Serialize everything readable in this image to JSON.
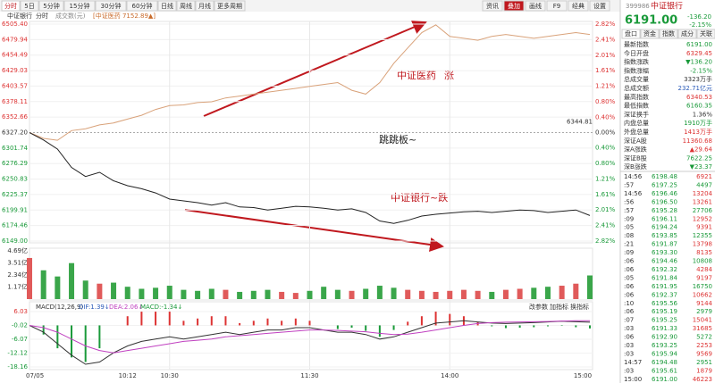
{
  "toolbar": {
    "tabs": [
      "分时",
      "5日",
      "5分钟",
      "15分钟",
      "30分钟",
      "60分钟",
      "日线",
      "周线",
      "月线",
      "更多周期"
    ],
    "tools": [
      "资讯",
      "叠加",
      "画线",
      "F9",
      "经典",
      "设置"
    ]
  },
  "chart": {
    "title": "中证银行",
    "mode": "分时",
    "volume_unit": "成交数(元)",
    "overlay": "[中证医药 7152.89▲]",
    "ylim": [
      6149.0,
      6505.4
    ],
    "y2lim": [
      -2.82,
      2.82
    ],
    "price_ticks": [
      {
        "value": 6505.4,
        "label": "6505.40"
      },
      {
        "value": 6479.94,
        "label": "6479.94"
      },
      {
        "value": 6454.49,
        "label": "6454.49"
      },
      {
        "value": 6429.03,
        "label": "6429.03"
      },
      {
        "value": 6403.57,
        "label": "6403.57"
      },
      {
        "value": 6378.11,
        "label": "6378.11"
      },
      {
        "value": 6352.66,
        "label": "6352.66"
      },
      {
        "value": 6327.2,
        "label": "6327.20"
      },
      {
        "value": 6301.74,
        "label": "6301.74"
      },
      {
        "value": 6276.29,
        "label": "6276.29"
      },
      {
        "value": 6250.83,
        "label": "6250.83"
      },
      {
        "value": 6225.37,
        "label": "6225.37"
      },
      {
        "value": 6199.91,
        "label": "6199.91"
      },
      {
        "value": 6174.46,
        "label": "6174.46"
      },
      {
        "value": 6149.0,
        "label": "6149.00"
      }
    ],
    "pct_ticks": [
      {
        "value": 2.82,
        "label": "2.82%"
      },
      {
        "value": 2.41,
        "label": "2.41%"
      },
      {
        "value": 2.01,
        "label": "2.01%"
      },
      {
        "value": 1.61,
        "label": "1.61%"
      },
      {
        "value": 1.21,
        "label": "1.21%"
      },
      {
        "value": 0.8,
        "label": "0.80%"
      },
      {
        "value": 0.4,
        "label": "0.40%"
      },
      {
        "value": 0,
        "label": "0.00%"
      },
      {
        "value": -0.4,
        "label": "0.40%"
      },
      {
        "value": -0.8,
        "label": "0.80%"
      },
      {
        "value": -1.21,
        "label": "1.21%"
      },
      {
        "value": -1.61,
        "label": "1.61%"
      },
      {
        "value": -2.01,
        "label": "2.01%"
      },
      {
        "value": -2.41,
        "label": "2.41%"
      },
      {
        "value": -2.82,
        "label": "2.82%"
      }
    ],
    "marker": {
      "value": 6344.81,
      "label": "6344.81"
    },
    "x": [
      0,
      6,
      12,
      18,
      24,
      30,
      36,
      42,
      48,
      54,
      60,
      66,
      72,
      78,
      84,
      90,
      96,
      102,
      108,
      114,
      120,
      126,
      132,
      138,
      144,
      150,
      156,
      162,
      168,
      174,
      180,
      186,
      192,
      198,
      204,
      210,
      216,
      222,
      228,
      234,
      240
    ],
    "xlim": [
      0,
      240
    ],
    "bank": [
      6327,
      6315,
      6300,
      6270,
      6255,
      6262,
      6248,
      6240,
      6235,
      6228,
      6218,
      6215,
      6212,
      6208,
      6212,
      6205,
      6204,
      6200,
      6203,
      6206,
      6205,
      6203,
      6200,
      6202,
      6196,
      6182,
      6178,
      6183,
      6190,
      6193,
      6195,
      6197,
      6198,
      6196,
      6198,
      6200,
      6199,
      6196,
      6198,
      6200,
      6191
    ],
    "bank_color": "#222",
    "pharma": [
      0.0,
      -0.15,
      -0.2,
      0.05,
      0.1,
      0.2,
      0.25,
      0.35,
      0.45,
      0.6,
      0.7,
      0.72,
      0.78,
      0.8,
      0.9,
      0.95,
      1.0,
      1.05,
      1.1,
      1.15,
      1.2,
      1.25,
      1.3,
      1.1,
      1.0,
      1.3,
      1.8,
      2.2,
      2.6,
      2.8,
      2.5,
      2.45,
      2.4,
      2.5,
      2.55,
      2.5,
      2.45,
      2.5,
      2.55,
      2.6,
      2.55
    ],
    "pharma_color": "#d9a27a",
    "annotations": [
      "中证医药",
      "涨",
      "跳跳板~",
      "中证银行~跌"
    ]
  },
  "volume": {
    "ylim": [
      0,
      4.69
    ],
    "ticks": [
      {
        "value": 4.69,
        "label": "4.69亿"
      },
      {
        "value": 3.51,
        "label": "3.51亿"
      },
      {
        "value": 2.34,
        "label": "2.34亿"
      },
      {
        "value": 1.17,
        "label": "1.17亿"
      }
    ],
    "values": [
      4.0,
      2.8,
      2.2,
      3.5,
      1.8,
      1.5,
      1.6,
      1.2,
      1.0,
      1.1,
      1.3,
      0.9,
      0.8,
      1.0,
      0.9,
      0.7,
      0.8,
      0.9,
      0.7,
      0.6,
      0.8,
      1.2,
      0.9,
      0.8,
      1.0,
      1.3,
      1.1,
      0.9,
      0.8,
      0.7,
      0.8,
      0.9,
      0.8,
      0.7,
      0.9,
      1.0,
      1.1,
      1.2,
      1.3,
      1.5,
      2.3
    ],
    "up_color": "#e05a5a",
    "down_color": "#3aa64a"
  },
  "macd": {
    "label": "MACD(12,26,9)",
    "dif_label": "DIF:1.39↓",
    "dea_label": "DEA:2.06↓",
    "macd_label": "MACD:-1.34↓",
    "buttons": [
      "改参数",
      "加指标",
      "换指标"
    ],
    "ylim": [
      -18.16,
      6.03
    ],
    "ticks": [
      6.03,
      -0.02,
      -6.07,
      -12.12,
      -18.16
    ],
    "dif": [
      0,
      -3,
      -8,
      -13,
      -17,
      -16,
      -12,
      -9,
      -7,
      -6,
      -5,
      -6,
      -5,
      -4,
      -3,
      -4,
      -3,
      -2,
      -2,
      -1,
      -1,
      -2,
      -3,
      -3,
      -4,
      -6,
      -5,
      -3,
      -1,
      1,
      1.5,
      2,
      1.5,
      1,
      0.8,
      1,
      1.2,
      1.5,
      1.8,
      1.6,
      1.39
    ],
    "dea": [
      0,
      -1,
      -3,
      -6,
      -9,
      -11,
      -12,
      -11,
      -10,
      -9,
      -8,
      -7,
      -6.5,
      -6,
      -5,
      -4.5,
      -4,
      -3.5,
      -3,
      -2.5,
      -2,
      -2,
      -2.2,
      -2.5,
      -2.8,
      -3.5,
      -4,
      -3.8,
      -3,
      -2,
      -1,
      0,
      0.8,
      1.2,
      1.4,
      1.5,
      1.6,
      1.7,
      1.9,
      2.0,
      2.06
    ],
    "hist": [
      0,
      -4,
      -10,
      -14,
      -16,
      -10,
      0,
      4,
      6,
      6,
      6,
      2,
      3,
      4,
      4,
      1,
      2,
      3,
      2,
      3,
      2,
      0,
      -1.6,
      -1,
      -2.4,
      -5,
      -2,
      1.6,
      4,
      6,
      5,
      4,
      1.4,
      -0.4,
      -1.2,
      -1,
      -0.8,
      -0.4,
      -0.2,
      -0.8,
      -1.34
    ],
    "dif_color": "#333",
    "dea_color": "#c040c0"
  },
  "time_axis": {
    "ticks": [
      {
        "value": 0,
        "label": "07/05"
      },
      {
        "value": 42,
        "label": "10:12"
      },
      {
        "value": 60,
        "label": "10:30"
      },
      {
        "value": 120,
        "label": "11:30"
      },
      {
        "value": 180,
        "label": "14:00"
      },
      {
        "value": 240,
        "label": "15:00"
      }
    ]
  },
  "panel": {
    "code": "399986",
    "name": "中证银行",
    "price": "6191.00",
    "change": "-136.20",
    "pct": "-2.15%",
    "tabs": [
      "盘口",
      "资金",
      "指数",
      "成分",
      "关联"
    ],
    "rows": [
      {
        "label": "最新指数",
        "value": "6191.00",
        "color": "#1a9a3a"
      },
      {
        "label": "今日开盘",
        "value": "6329.45",
        "color": "#d33"
      },
      {
        "label": "指数涨跌",
        "value": "▼136.20",
        "color": "#1a9a3a"
      },
      {
        "label": "指数涨幅",
        "value": "-2.15%",
        "color": "#1a9a3a"
      },
      {
        "label": "总成交量",
        "value": "3323万手",
        "color": "#333"
      },
      {
        "label": "总成交额",
        "value": "232.71亿元",
        "color": "#2a5ab8"
      },
      {
        "label": "最高指数",
        "value": "6340.53",
        "color": "#d33"
      },
      {
        "label": "最低指数",
        "value": "6160.35",
        "color": "#1a9a3a"
      },
      {
        "label": "深证换手",
        "value": "1.36%",
        "color": "#333"
      },
      {
        "label": "内盘总量",
        "value": "1910万手",
        "color": "#1a9a3a"
      },
      {
        "label": "外盘总量",
        "value": "1413万手",
        "color": "#d33"
      },
      {
        "label": "深证A股",
        "value": "11360.68",
        "color": "#d33"
      },
      {
        "label": "深A涨跌",
        "value": "▲29.64",
        "color": "#d33"
      },
      {
        "label": "深证B股",
        "value": "7622.25",
        "color": "#1a9a3a"
      },
      {
        "label": "深B涨跌",
        "value": "▼23.37",
        "color": "#1a9a3a"
      }
    ],
    "trades": [
      [
        "14:56",
        "6198.48",
        "6921"
      ],
      [
        ":57",
        "6197.25",
        "4497"
      ],
      [
        "14:56",
        "6196.46",
        "13204"
      ],
      [
        ":56",
        "6196.50",
        "13261"
      ],
      [
        ":57",
        "6195.28",
        "27706"
      ],
      [
        ":09",
        "6196.11",
        "12952"
      ],
      [
        ":05",
        "6194.24",
        "9391"
      ],
      [
        ":08",
        "6193.85",
        "12355"
      ],
      [
        ":21",
        "6191.87",
        "13798"
      ],
      [
        ":09",
        "6193.30",
        "8135"
      ],
      [
        ":06",
        "6194.46",
        "10808"
      ],
      [
        ":06",
        "6192.32",
        "4284"
      ],
      [
        ":05",
        "6191.84",
        "9197"
      ],
      [
        ":06",
        "6191.95",
        "16750"
      ],
      [
        ":06",
        "6192.37",
        "10662"
      ],
      [
        ":10",
        "6195.56",
        "9144"
      ],
      [
        ":06",
        "6195.19",
        "2979"
      ],
      [
        ":07",
        "6195.25",
        "15041"
      ],
      [
        ":03",
        "6191.33",
        "31685"
      ],
      [
        ":06",
        "6192.90",
        "5272"
      ],
      [
        ":03",
        "6193.25",
        "2253"
      ],
      [
        ":03",
        "6195.94",
        "9569"
      ],
      [
        "14:57",
        "6194.48",
        "2951"
      ],
      [
        ":03",
        "6195.61",
        "1879"
      ],
      [
        "15:00",
        "6191.00",
        "46223"
      ]
    ]
  }
}
